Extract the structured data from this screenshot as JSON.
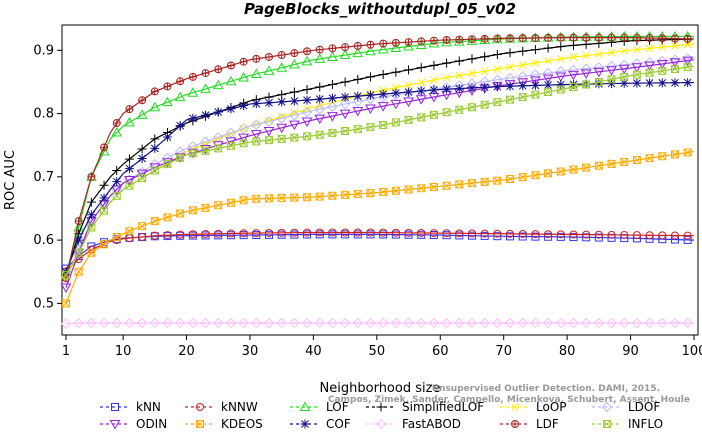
{
  "chart_data": {
    "type": "line",
    "title": "PageBlocks_withoutdupl_05_v02",
    "xlabel": "Neighborhood size",
    "ylabel": "ROC AUC",
    "xlim": [
      1,
      100
    ],
    "ylim": [
      0.45,
      0.94
    ],
    "x_ticks": [
      1,
      10,
      20,
      30,
      40,
      50,
      60,
      70,
      80,
      90,
      100
    ],
    "y_ticks": [
      0.5,
      0.6,
      0.7,
      0.8,
      0.9
    ],
    "grid": false,
    "legend_position": "bottom",
    "watermark": [
      "Unsupervised Outlier Detection. DAMI, 2015.",
      "Campos, Zimek, Sander, Campello, Micenkova, Schubert, Assent, Houle"
    ],
    "series": [
      {
        "name": "kNN",
        "color": "#3333ff",
        "marker": "square",
        "x": [
          1,
          3,
          5,
          8,
          10,
          15,
          20,
          30,
          40,
          50,
          60,
          70,
          80,
          90,
          100
        ],
        "values": [
          0.555,
          0.575,
          0.59,
          0.6,
          0.603,
          0.606,
          0.607,
          0.608,
          0.609,
          0.609,
          0.608,
          0.606,
          0.605,
          0.603,
          0.6
        ]
      },
      {
        "name": "kNNW",
        "color": "#cc2222",
        "marker": "circle",
        "x": [
          1,
          3,
          5,
          8,
          10,
          15,
          20,
          30,
          40,
          50,
          60,
          70,
          80,
          90,
          100
        ],
        "values": [
          0.55,
          0.57,
          0.585,
          0.598,
          0.602,
          0.607,
          0.609,
          0.611,
          0.612,
          0.612,
          0.611,
          0.61,
          0.609,
          0.608,
          0.607
        ]
      },
      {
        "name": "LOF",
        "color": "#22dd22",
        "marker": "triangle-up",
        "x": [
          1,
          3,
          5,
          8,
          10,
          15,
          20,
          30,
          40,
          50,
          60,
          70,
          80,
          90,
          100
        ],
        "values": [
          0.545,
          0.62,
          0.7,
          0.76,
          0.78,
          0.81,
          0.83,
          0.86,
          0.885,
          0.9,
          0.912,
          0.918,
          0.921,
          0.922,
          0.922
        ]
      },
      {
        "name": "SimplifiedLOF",
        "color": "#000000",
        "marker": "plus",
        "x": [
          1,
          3,
          5,
          8,
          10,
          15,
          20,
          30,
          40,
          50,
          60,
          70,
          80,
          90,
          100
        ],
        "values": [
          0.545,
          0.61,
          0.66,
          0.7,
          0.72,
          0.76,
          0.785,
          0.82,
          0.84,
          0.86,
          0.878,
          0.895,
          0.907,
          0.915,
          0.918
        ]
      },
      {
        "name": "LoOP",
        "color": "#ffee00",
        "marker": "x",
        "x": [
          1,
          3,
          5,
          8,
          10,
          15,
          20,
          30,
          40,
          50,
          60,
          70,
          80,
          90,
          100
        ],
        "values": [
          0.54,
          0.58,
          0.62,
          0.66,
          0.68,
          0.71,
          0.74,
          0.78,
          0.81,
          0.835,
          0.855,
          0.872,
          0.888,
          0.9,
          0.91
        ]
      },
      {
        "name": "LDOF",
        "color": "#bbbbff",
        "marker": "diamond",
        "x": [
          1,
          3,
          5,
          8,
          10,
          15,
          20,
          30,
          40,
          50,
          60,
          70,
          80,
          90,
          100
        ],
        "values": [
          0.54,
          0.585,
          0.63,
          0.67,
          0.69,
          0.72,
          0.745,
          0.78,
          0.805,
          0.825,
          0.84,
          0.855,
          0.868,
          0.878,
          0.888
        ]
      },
      {
        "name": "ODIN",
        "color": "#9922dd",
        "marker": "triangle-down",
        "x": [
          1,
          3,
          5,
          8,
          10,
          15,
          20,
          30,
          40,
          50,
          60,
          70,
          80,
          90,
          100
        ],
        "values": [
          0.525,
          0.58,
          0.63,
          0.67,
          0.69,
          0.715,
          0.735,
          0.765,
          0.79,
          0.81,
          0.828,
          0.845,
          0.86,
          0.872,
          0.885
        ]
      },
      {
        "name": "KDEOS",
        "color": "#ffaa00",
        "marker": "square-x",
        "x": [
          1,
          3,
          5,
          8,
          10,
          15,
          20,
          30,
          40,
          50,
          60,
          70,
          80,
          90,
          100
        ],
        "values": [
          0.5,
          0.55,
          0.58,
          0.6,
          0.61,
          0.63,
          0.645,
          0.665,
          0.668,
          0.675,
          0.685,
          0.695,
          0.71,
          0.725,
          0.74
        ]
      },
      {
        "name": "COF",
        "color": "#111188",
        "marker": "asterisk",
        "x": [
          1,
          3,
          5,
          8,
          10,
          15,
          20,
          30,
          40,
          50,
          60,
          70,
          80,
          90,
          100
        ],
        "values": [
          0.55,
          0.6,
          0.64,
          0.68,
          0.705,
          0.745,
          0.79,
          0.815,
          0.822,
          0.83,
          0.838,
          0.843,
          0.846,
          0.848,
          0.849
        ]
      },
      {
        "name": "FastABOD",
        "color": "#ffbbff",
        "marker": "diamond",
        "x": [
          1,
          3,
          5,
          8,
          10,
          15,
          20,
          30,
          40,
          50,
          60,
          70,
          80,
          90,
          100
        ],
        "values": [
          0.468,
          0.469,
          0.469,
          0.469,
          0.469,
          0.469,
          0.469,
          0.469,
          0.469,
          0.469,
          0.469,
          0.469,
          0.469,
          0.469,
          0.469
        ]
      },
      {
        "name": "LDF",
        "color": "#aa2222",
        "marker": "circle-plus",
        "x": [
          1,
          3,
          5,
          8,
          10,
          15,
          20,
          30,
          40,
          50,
          60,
          70,
          80,
          90,
          100
        ],
        "values": [
          0.54,
          0.63,
          0.7,
          0.77,
          0.8,
          0.835,
          0.855,
          0.885,
          0.9,
          0.91,
          0.916,
          0.919,
          0.92,
          0.92,
          0.918
        ]
      },
      {
        "name": "INFLO",
        "color": "#99cc33",
        "marker": "square-x",
        "x": [
          1,
          3,
          5,
          8,
          10,
          15,
          20,
          30,
          40,
          50,
          60,
          70,
          80,
          90,
          100
        ],
        "values": [
          0.545,
          0.58,
          0.62,
          0.66,
          0.68,
          0.71,
          0.735,
          0.755,
          0.765,
          0.78,
          0.8,
          0.82,
          0.84,
          0.86,
          0.875
        ]
      }
    ]
  }
}
